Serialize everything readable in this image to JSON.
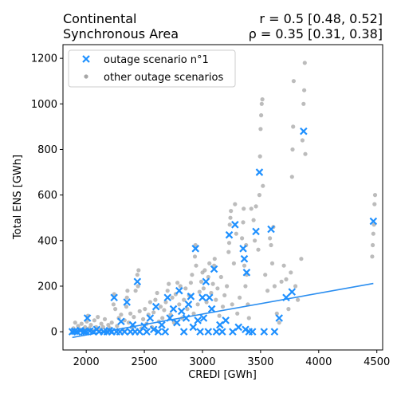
{
  "chart_data": {
    "type": "scatter",
    "title": "Continental\nSynchronous Area",
    "stats": {
      "r_line": "r = 0.5 [0.48, 0.52]",
      "rho_line": "ρ = 0.35 [0.31, 0.38]"
    },
    "xlabel": "CREDI [GWh]",
    "ylabel": "Total ENS [GWh]",
    "xlim": [
      1800,
      4550
    ],
    "ylim": [
      -80,
      1260
    ],
    "xticks": [
      2000,
      2500,
      3000,
      3500,
      4000,
      4500
    ],
    "yticks": [
      0,
      200,
      400,
      600,
      800,
      1000,
      1200
    ],
    "legend": {
      "placement": "top-left",
      "entries": [
        "outage scenario n°1",
        "other outage scenarios"
      ]
    },
    "colors": {
      "highlight": "#1e90ff",
      "others": "#a6a6a6",
      "trendline": "#2b8ef0"
    },
    "trendline": {
      "x": [
        1880,
        4470
      ],
      "y": [
        -25,
        212
      ]
    },
    "series": [
      {
        "name": "outage scenario n°1",
        "marker": "x",
        "points": [
          [
            1880,
            0
          ],
          [
            1900,
            2
          ],
          [
            1920,
            0
          ],
          [
            1950,
            5
          ],
          [
            1980,
            0
          ],
          [
            2000,
            0
          ],
          [
            2010,
            60
          ],
          [
            2030,
            3
          ],
          [
            2060,
            0
          ],
          [
            2090,
            10
          ],
          [
            2110,
            0
          ],
          [
            2150,
            0
          ],
          [
            2180,
            0
          ],
          [
            2200,
            5
          ],
          [
            2220,
            0
          ],
          [
            2240,
            150
          ],
          [
            2260,
            0
          ],
          [
            2290,
            0
          ],
          [
            2300,
            45
          ],
          [
            2330,
            0
          ],
          [
            2350,
            130
          ],
          [
            2380,
            0
          ],
          [
            2400,
            30
          ],
          [
            2420,
            0
          ],
          [
            2440,
            220
          ],
          [
            2460,
            0
          ],
          [
            2500,
            25
          ],
          [
            2520,
            0
          ],
          [
            2550,
            60
          ],
          [
            2580,
            10
          ],
          [
            2600,
            110
          ],
          [
            2620,
            0
          ],
          [
            2650,
            30
          ],
          [
            2680,
            0
          ],
          [
            2700,
            150
          ],
          [
            2720,
            60
          ],
          [
            2750,
            100
          ],
          [
            2780,
            40
          ],
          [
            2800,
            180
          ],
          [
            2820,
            90
          ],
          [
            2840,
            0
          ],
          [
            2860,
            60
          ],
          [
            2880,
            120
          ],
          [
            2900,
            155
          ],
          [
            2920,
            20
          ],
          [
            2940,
            365
          ],
          [
            2960,
            50
          ],
          [
            2980,
            0
          ],
          [
            3000,
            150
          ],
          [
            3010,
            60
          ],
          [
            3030,
            220
          ],
          [
            3050,
            0
          ],
          [
            3060,
            150
          ],
          [
            3080,
            100
          ],
          [
            3100,
            275
          ],
          [
            3120,
            0
          ],
          [
            3150,
            30
          ],
          [
            3170,
            0
          ],
          [
            3200,
            50
          ],
          [
            3230,
            425
          ],
          [
            3260,
            0
          ],
          [
            3280,
            470
          ],
          [
            3310,
            20
          ],
          [
            3350,
            365
          ],
          [
            3360,
            320
          ],
          [
            3380,
            260
          ],
          [
            3370,
            10
          ],
          [
            3400,
            0
          ],
          [
            3430,
            0
          ],
          [
            3460,
            440
          ],
          [
            3490,
            700
          ],
          [
            3530,
            0
          ],
          [
            3590,
            450
          ],
          [
            3620,
            0
          ],
          [
            3660,
            60
          ],
          [
            3720,
            150
          ],
          [
            3770,
            175
          ],
          [
            3870,
            880
          ],
          [
            4470,
            485
          ]
        ]
      },
      {
        "name": "other outage scenarios",
        "marker": "dot",
        "points": [
          [
            1880,
            5
          ],
          [
            1890,
            15
          ],
          [
            1905,
            40
          ],
          [
            1915,
            0
          ],
          [
            1930,
            25
          ],
          [
            1945,
            10
          ],
          [
            1960,
            35
          ],
          [
            1975,
            5
          ],
          [
            1990,
            20
          ],
          [
            2005,
            45
          ],
          [
            2015,
            70
          ],
          [
            2025,
            15
          ],
          [
            2040,
            30
          ],
          [
            2055,
            5
          ],
          [
            2070,
            50
          ],
          [
            2085,
            20
          ],
          [
            2100,
            65
          ],
          [
            2115,
            10
          ],
          [
            2130,
            35
          ],
          [
            2145,
            20
          ],
          [
            2160,
            55
          ],
          [
            2175,
            5
          ],
          [
            2190,
            30
          ],
          [
            2205,
            15
          ],
          [
            2220,
            40
          ],
          [
            2235,
            120
          ],
          [
            2240,
            165
          ],
          [
            2250,
            100
          ],
          [
            2265,
            25
          ],
          [
            2280,
            60
          ],
          [
            2300,
            75
          ],
          [
            2315,
            10
          ],
          [
            2330,
            50
          ],
          [
            2345,
            110
          ],
          [
            2350,
            150
          ],
          [
            2355,
            180
          ],
          [
            2365,
            40
          ],
          [
            2380,
            80
          ],
          [
            2395,
            20
          ],
          [
            2410,
            65
          ],
          [
            2425,
            180
          ],
          [
            2440,
            250
          ],
          [
            2445,
            200
          ],
          [
            2450,
            270
          ],
          [
            2460,
            90
          ],
          [
            2475,
            15
          ],
          [
            2490,
            55
          ],
          [
            2505,
            100
          ],
          [
            2520,
            35
          ],
          [
            2535,
            75
          ],
          [
            2550,
            130
          ],
          [
            2565,
            20
          ],
          [
            2580,
            85
          ],
          [
            2595,
            140
          ],
          [
            2610,
            170
          ],
          [
            2625,
            45
          ],
          [
            2640,
            110
          ],
          [
            2655,
            60
          ],
          [
            2670,
            95
          ],
          [
            2685,
            130
          ],
          [
            2700,
            180
          ],
          [
            2710,
            210
          ],
          [
            2725,
            75
          ],
          [
            2740,
            150
          ],
          [
            2755,
            40
          ],
          [
            2770,
            165
          ],
          [
            2785,
            215
          ],
          [
            2800,
            120
          ],
          [
            2810,
            200
          ],
          [
            2825,
            60
          ],
          [
            2840,
            140
          ],
          [
            2855,
            190
          ],
          [
            2870,
            100
          ],
          [
            2885,
            160
          ],
          [
            2900,
            215
          ],
          [
            2910,
            250
          ],
          [
            2925,
            80
          ],
          [
            2935,
            330
          ],
          [
            2940,
            380
          ],
          [
            2945,
            290
          ],
          [
            2960,
            120
          ],
          [
            2975,
            175
          ],
          [
            2990,
            220
          ],
          [
            3000,
            260
          ],
          [
            3010,
            190
          ],
          [
            3020,
            270
          ],
          [
            3035,
            130
          ],
          [
            3050,
            240
          ],
          [
            3060,
            300
          ],
          [
            3075,
            170
          ],
          [
            3090,
            210
          ],
          [
            3100,
            290
          ],
          [
            3105,
            320
          ],
          [
            3115,
            140
          ],
          [
            3130,
            190
          ],
          [
            3145,
            70
          ],
          [
            3160,
            240
          ],
          [
            3175,
            110
          ],
          [
            3190,
            160
          ],
          [
            3210,
            200
          ],
          [
            3225,
            350
          ],
          [
            3230,
            390
          ],
          [
            3235,
            470
          ],
          [
            3240,
            500
          ],
          [
            3245,
            530
          ],
          [
            3255,
            120
          ],
          [
            3270,
            300
          ],
          [
            3280,
            560
          ],
          [
            3290,
            430
          ],
          [
            3300,
            80
          ],
          [
            3320,
            150
          ],
          [
            3340,
            410
          ],
          [
            3350,
            480
          ],
          [
            3355,
            540
          ],
          [
            3360,
            290
          ],
          [
            3370,
            200
          ],
          [
            3375,
            380
          ],
          [
            3380,
            250
          ],
          [
            3390,
            120
          ],
          [
            3400,
            60
          ],
          [
            3420,
            540
          ],
          [
            3440,
            490
          ],
          [
            3450,
            400
          ],
          [
            3460,
            550
          ],
          [
            3480,
            360
          ],
          [
            3490,
            600
          ],
          [
            3495,
            770
          ],
          [
            3500,
            890
          ],
          [
            3505,
            950
          ],
          [
            3510,
            1000
          ],
          [
            3515,
            1020
          ],
          [
            3520,
            640
          ],
          [
            3540,
            250
          ],
          [
            3560,
            180
          ],
          [
            3580,
            410
          ],
          [
            3590,
            380
          ],
          [
            3600,
            300
          ],
          [
            3610,
            460
          ],
          [
            3620,
            200
          ],
          [
            3640,
            80
          ],
          [
            3660,
            40
          ],
          [
            3680,
            220
          ],
          [
            3700,
            290
          ],
          [
            3720,
            230
          ],
          [
            3740,
            100
          ],
          [
            3760,
            260
          ],
          [
            3770,
            680
          ],
          [
            3775,
            800
          ],
          [
            3780,
            900
          ],
          [
            3785,
            1100
          ],
          [
            3800,
            200
          ],
          [
            3820,
            140
          ],
          [
            3850,
            320
          ],
          [
            3860,
            840
          ],
          [
            3870,
            1000
          ],
          [
            3875,
            1060
          ],
          [
            3880,
            1180
          ],
          [
            3885,
            780
          ],
          [
            4460,
            330
          ],
          [
            4465,
            380
          ],
          [
            4470,
            430
          ],
          [
            4475,
            470
          ],
          [
            4480,
            560
          ],
          [
            4485,
            600
          ]
        ]
      }
    ]
  }
}
